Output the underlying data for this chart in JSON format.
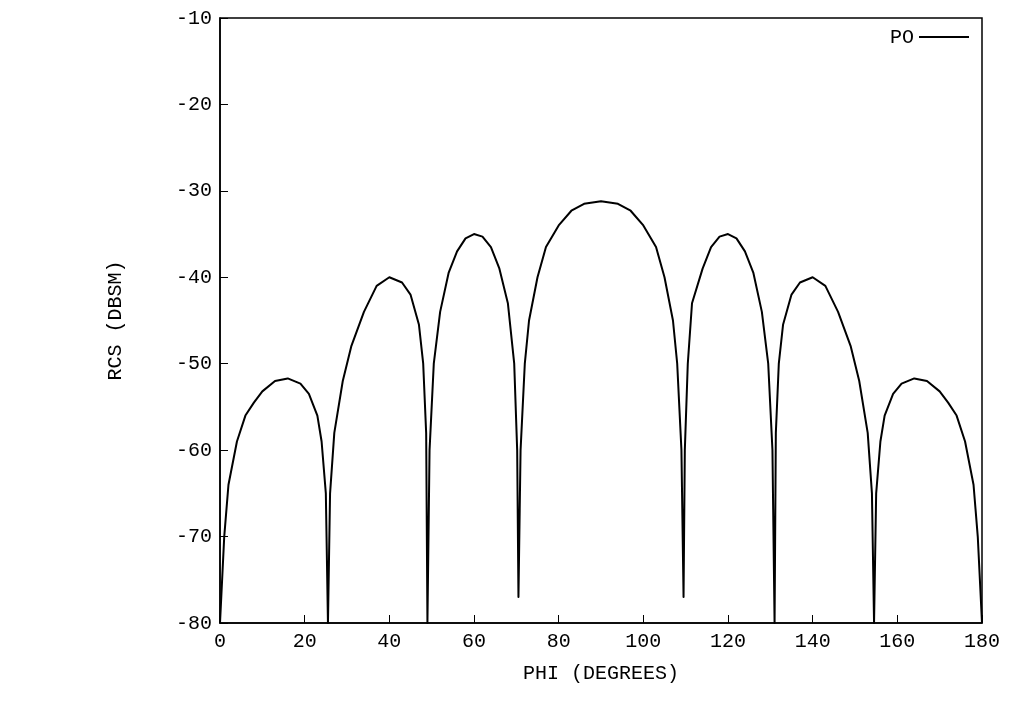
{
  "chart_data": {
    "type": "line",
    "xlabel": "PHI (DEGREES)",
    "ylabel": "RCS (DBSM)",
    "xlim": [
      0,
      180
    ],
    "xticks": [
      0,
      20,
      40,
      60,
      80,
      100,
      120,
      140,
      160,
      180
    ],
    "ylim": [
      -80,
      -10
    ],
    "yticks": [
      -80,
      -70,
      -60,
      -50,
      -40,
      -30,
      -20,
      -10
    ],
    "grid": false,
    "legend": "top right",
    "marker": "none",
    "line_style": "solid",
    "series": [
      {
        "name": "PO",
        "color": "#000000",
        "x": [
          0,
          1,
          2,
          4,
          6,
          8,
          10,
          13,
          16,
          19,
          21,
          23,
          24,
          25,
          25.5,
          26,
          27,
          29,
          31,
          34,
          37,
          40,
          43,
          45,
          47,
          48,
          48.7,
          49,
          49.5,
          50.5,
          52,
          54,
          56,
          58,
          60,
          62,
          64,
          66,
          68,
          69.5,
          70.2,
          70.5,
          71,
          72,
          73,
          75,
          77,
          80,
          83,
          86,
          90,
          94,
          97,
          100,
          103,
          105,
          107,
          108,
          109,
          109.5,
          109.8,
          110.5,
          111.5,
          114,
          116,
          118,
          120,
          122,
          124,
          126,
          128,
          129.5,
          130.5,
          131,
          131.3,
          132,
          133,
          135,
          137,
          140,
          143,
          146,
          149,
          151,
          153,
          154,
          154.5,
          155,
          156,
          157,
          159,
          161,
          164,
          167,
          170,
          172,
          174,
          176,
          178,
          179,
          180
        ],
        "values": [
          -80,
          -70,
          -64,
          -59,
          -56,
          -54.5,
          -53.2,
          -52,
          -51.7,
          -52.3,
          -53.5,
          -56,
          -59,
          -65,
          -80,
          -65,
          -58,
          -52,
          -48,
          -44,
          -41,
          -40,
          -40.6,
          -42,
          -45.5,
          -50,
          -58,
          -80,
          -60,
          -50,
          -44,
          -39.5,
          -37,
          -35.5,
          -35,
          -35.3,
          -36.5,
          -39,
          -43,
          -50,
          -60,
          -77,
          -60,
          -50,
          -45,
          -40,
          -36.5,
          -34,
          -32.3,
          -31.5,
          -31.2,
          -31.5,
          -32.3,
          -34,
          -36.5,
          -40,
          -45,
          -50,
          -60,
          -77,
          -60,
          -50,
          -43,
          -39,
          -36.5,
          -35.3,
          -35,
          -35.5,
          -37,
          -39.5,
          -44,
          -50,
          -60,
          -80,
          -58,
          -50,
          -45.5,
          -42,
          -40.6,
          -40,
          -41,
          -44,
          -48,
          -52,
          -58,
          -65,
          -80,
          -65,
          -59,
          -56,
          -53.5,
          -52.3,
          -51.7,
          -52,
          -53.2,
          -54.5,
          -56,
          -59,
          -64,
          -70,
          -80
        ]
      }
    ]
  }
}
